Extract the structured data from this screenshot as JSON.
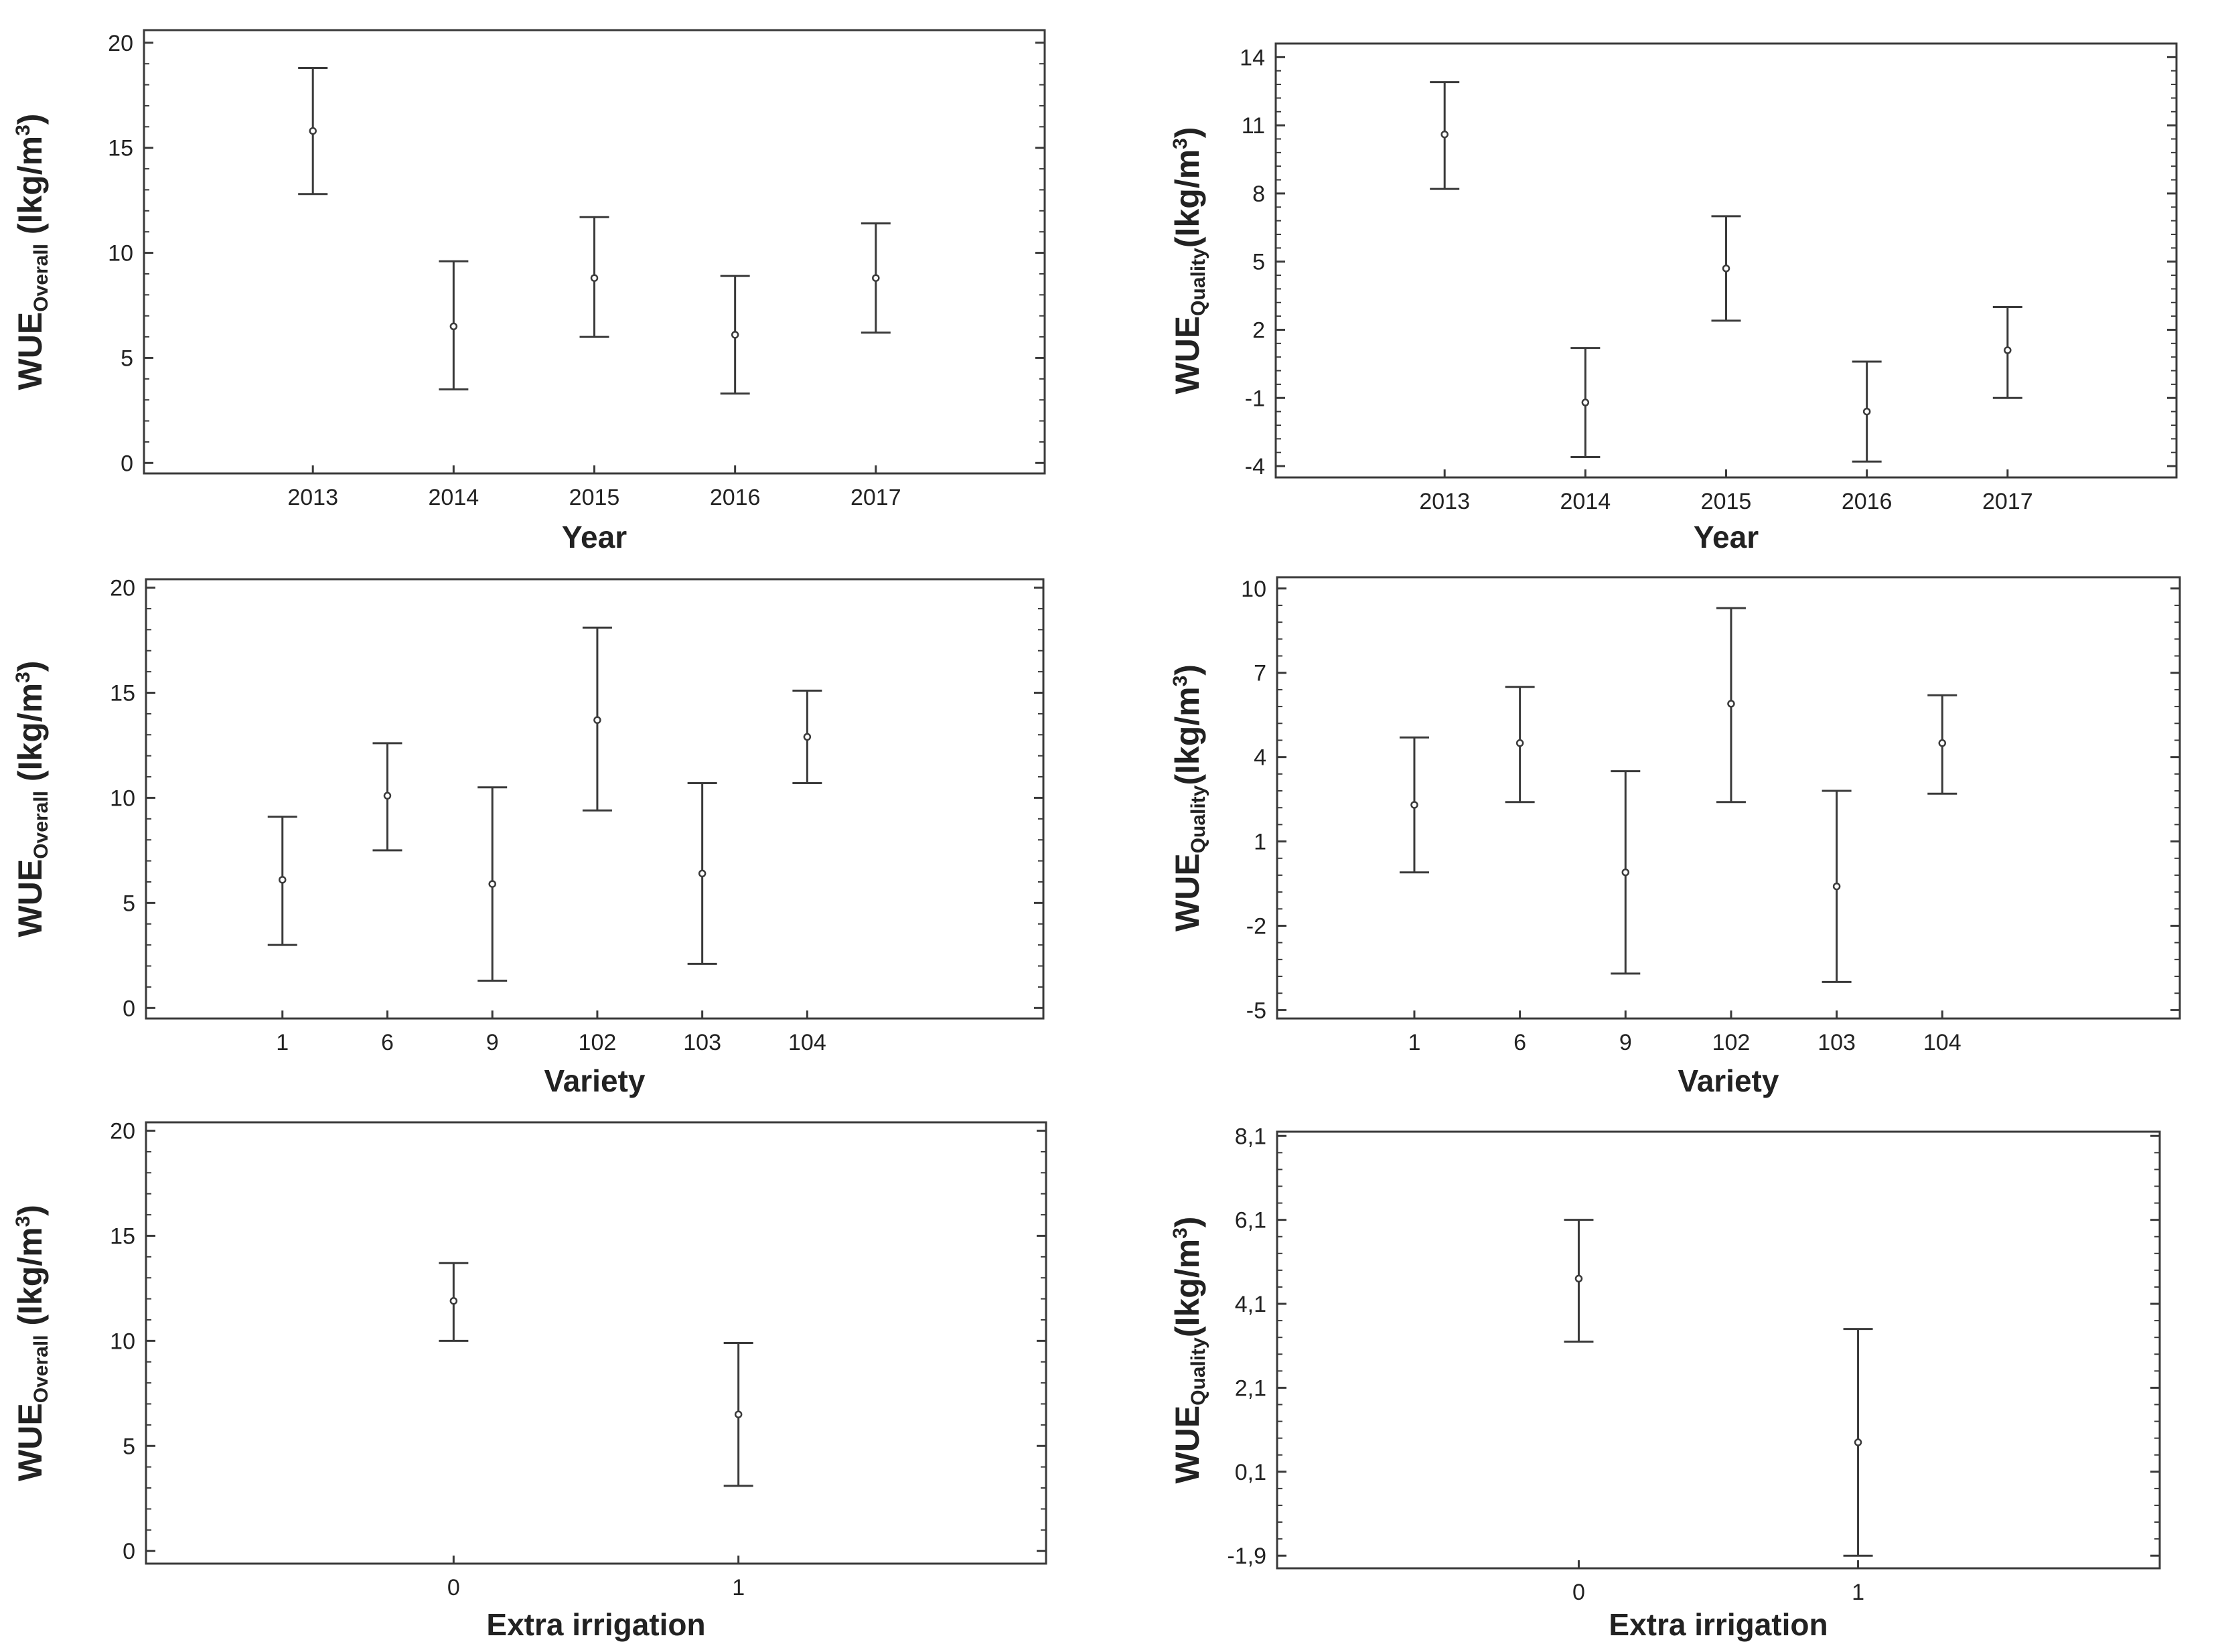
{
  "chart_data": [
    {
      "type": "errorbar",
      "title": "",
      "xlabel": "Year",
      "ylabel": {
        "main": "WUE",
        "sub": "Overall",
        "mid": " (Ikg/m",
        "sup": "3",
        "end": ")"
      },
      "categories": [
        "2013",
        "2014",
        "2015",
        "2016",
        "2017"
      ],
      "means": [
        15.8,
        6.5,
        8.8,
        6.1,
        8.8
      ],
      "lower": [
        12.8,
        3.5,
        6.0,
        3.3,
        6.2
      ],
      "upper": [
        18.8,
        9.6,
        11.7,
        8.9,
        11.4
      ],
      "yticks": [
        0,
        5,
        10,
        15,
        20
      ],
      "ytick_labels": [
        "0",
        "5",
        "10",
        "15",
        "20"
      ],
      "ylim": [
        -0.5,
        20.6
      ],
      "xrange": [
        -1.2,
        5.2
      ],
      "grid": false
    },
    {
      "type": "errorbar",
      "title": "",
      "xlabel": "Year",
      "ylabel": {
        "main": "WUE",
        "sub": "Quality",
        "mid": "(Ikg/m",
        "sup": "3",
        "end": ")"
      },
      "categories": [
        "2013",
        "2014",
        "2015",
        "2016",
        "2017"
      ],
      "means": [
        10.6,
        -1.2,
        4.7,
        -1.6,
        1.1
      ],
      "lower": [
        8.2,
        -3.6,
        2.4,
        -3.8,
        -1.0
      ],
      "upper": [
        12.9,
        1.2,
        7.0,
        0.6,
        3.0
      ],
      "yticks": [
        -4,
        -1,
        2,
        5,
        8,
        11,
        14
      ],
      "ytick_labels": [
        "-4",
        "-1",
        "2",
        "5",
        "8",
        "11",
        "14"
      ],
      "ylim": [
        -4.5,
        14.6
      ],
      "xrange": [
        -1.2,
        5.2
      ],
      "grid": false
    },
    {
      "type": "errorbar",
      "title": "",
      "xlabel": "Variety",
      "ylabel": {
        "main": "WUE",
        "sub": "Overall",
        "mid": " (Ikg/m",
        "sup": "3",
        "end": ")"
      },
      "categories": [
        "1",
        "6",
        "9",
        "102",
        "103",
        "104"
      ],
      "means": [
        6.1,
        10.1,
        5.9,
        13.7,
        6.4,
        12.9
      ],
      "lower": [
        3.0,
        7.5,
        1.3,
        9.4,
        2.1,
        10.7
      ],
      "upper": [
        9.1,
        12.6,
        10.5,
        18.1,
        10.7,
        15.1
      ],
      "yticks": [
        0,
        5,
        10,
        15,
        20
      ],
      "ytick_labels": [
        "0",
        "5",
        "10",
        "15",
        "20"
      ],
      "ylim": [
        -0.5,
        20.4
      ],
      "xrange": [
        -1.3,
        7.25
      ],
      "grid": false
    },
    {
      "type": "errorbar",
      "title": "",
      "xlabel": "Variety",
      "ylabel": {
        "main": "WUE",
        "sub": "Quality",
        "mid": "(Ikg/m",
        "sup": "3",
        "end": ")"
      },
      "categories": [
        "1",
        "6",
        "9",
        "102",
        "103",
        "104"
      ],
      "means": [
        2.3,
        4.5,
        -0.1,
        5.9,
        -0.6,
        4.5
      ],
      "lower": [
        -0.1,
        2.4,
        -3.7,
        2.4,
        -4.0,
        2.7
      ],
      "upper": [
        4.7,
        6.5,
        3.5,
        9.3,
        2.8,
        6.2
      ],
      "yticks": [
        -5,
        -2,
        1,
        4,
        7,
        10
      ],
      "ytick_labels": [
        "-5",
        "-2",
        "1",
        "4",
        "7",
        "10"
      ],
      "ylim": [
        -5.3,
        10.4
      ],
      "xrange": [
        -1.3,
        7.25
      ],
      "grid": false
    },
    {
      "type": "errorbar",
      "title": "",
      "xlabel": "Extra irrigation",
      "ylabel": {
        "main": "WUE",
        "sub": "Overall",
        "mid": " (Ikg/m",
        "sup": "3",
        "end": ")"
      },
      "categories": [
        "0",
        "1"
      ],
      "means": [
        11.9,
        6.5
      ],
      "lower": [
        10.0,
        3.1
      ],
      "upper": [
        13.7,
        9.9
      ],
      "yticks": [
        0,
        5,
        10,
        15,
        20
      ],
      "ytick_labels": [
        "0",
        "5",
        "10",
        "15",
        "20"
      ],
      "ylim": [
        -0.6,
        20.4
      ],
      "xrange": [
        -1.08,
        2.08
      ],
      "grid": false
    },
    {
      "type": "errorbar",
      "title": "",
      "xlabel": "Extra irrigation",
      "ylabel": {
        "main": "WUE",
        "sub": "Quality",
        "mid": "(Ikg/m",
        "sup": "3",
        "end": ")"
      },
      "categories": [
        "0",
        "1"
      ],
      "means": [
        4.7,
        0.8
      ],
      "lower": [
        3.2,
        -1.9
      ],
      "upper": [
        6.1,
        3.5
      ],
      "yticks": [
        -1.9,
        0.1,
        2.1,
        4.1,
        6.1,
        8.1
      ],
      "ytick_labels": [
        "-1,9",
        "0,1",
        "2,1",
        "4,1",
        "6,1",
        "8,1"
      ],
      "ylim": [
        -2.2,
        8.2
      ],
      "xrange": [
        -1.08,
        2.08
      ],
      "grid": false
    }
  ]
}
